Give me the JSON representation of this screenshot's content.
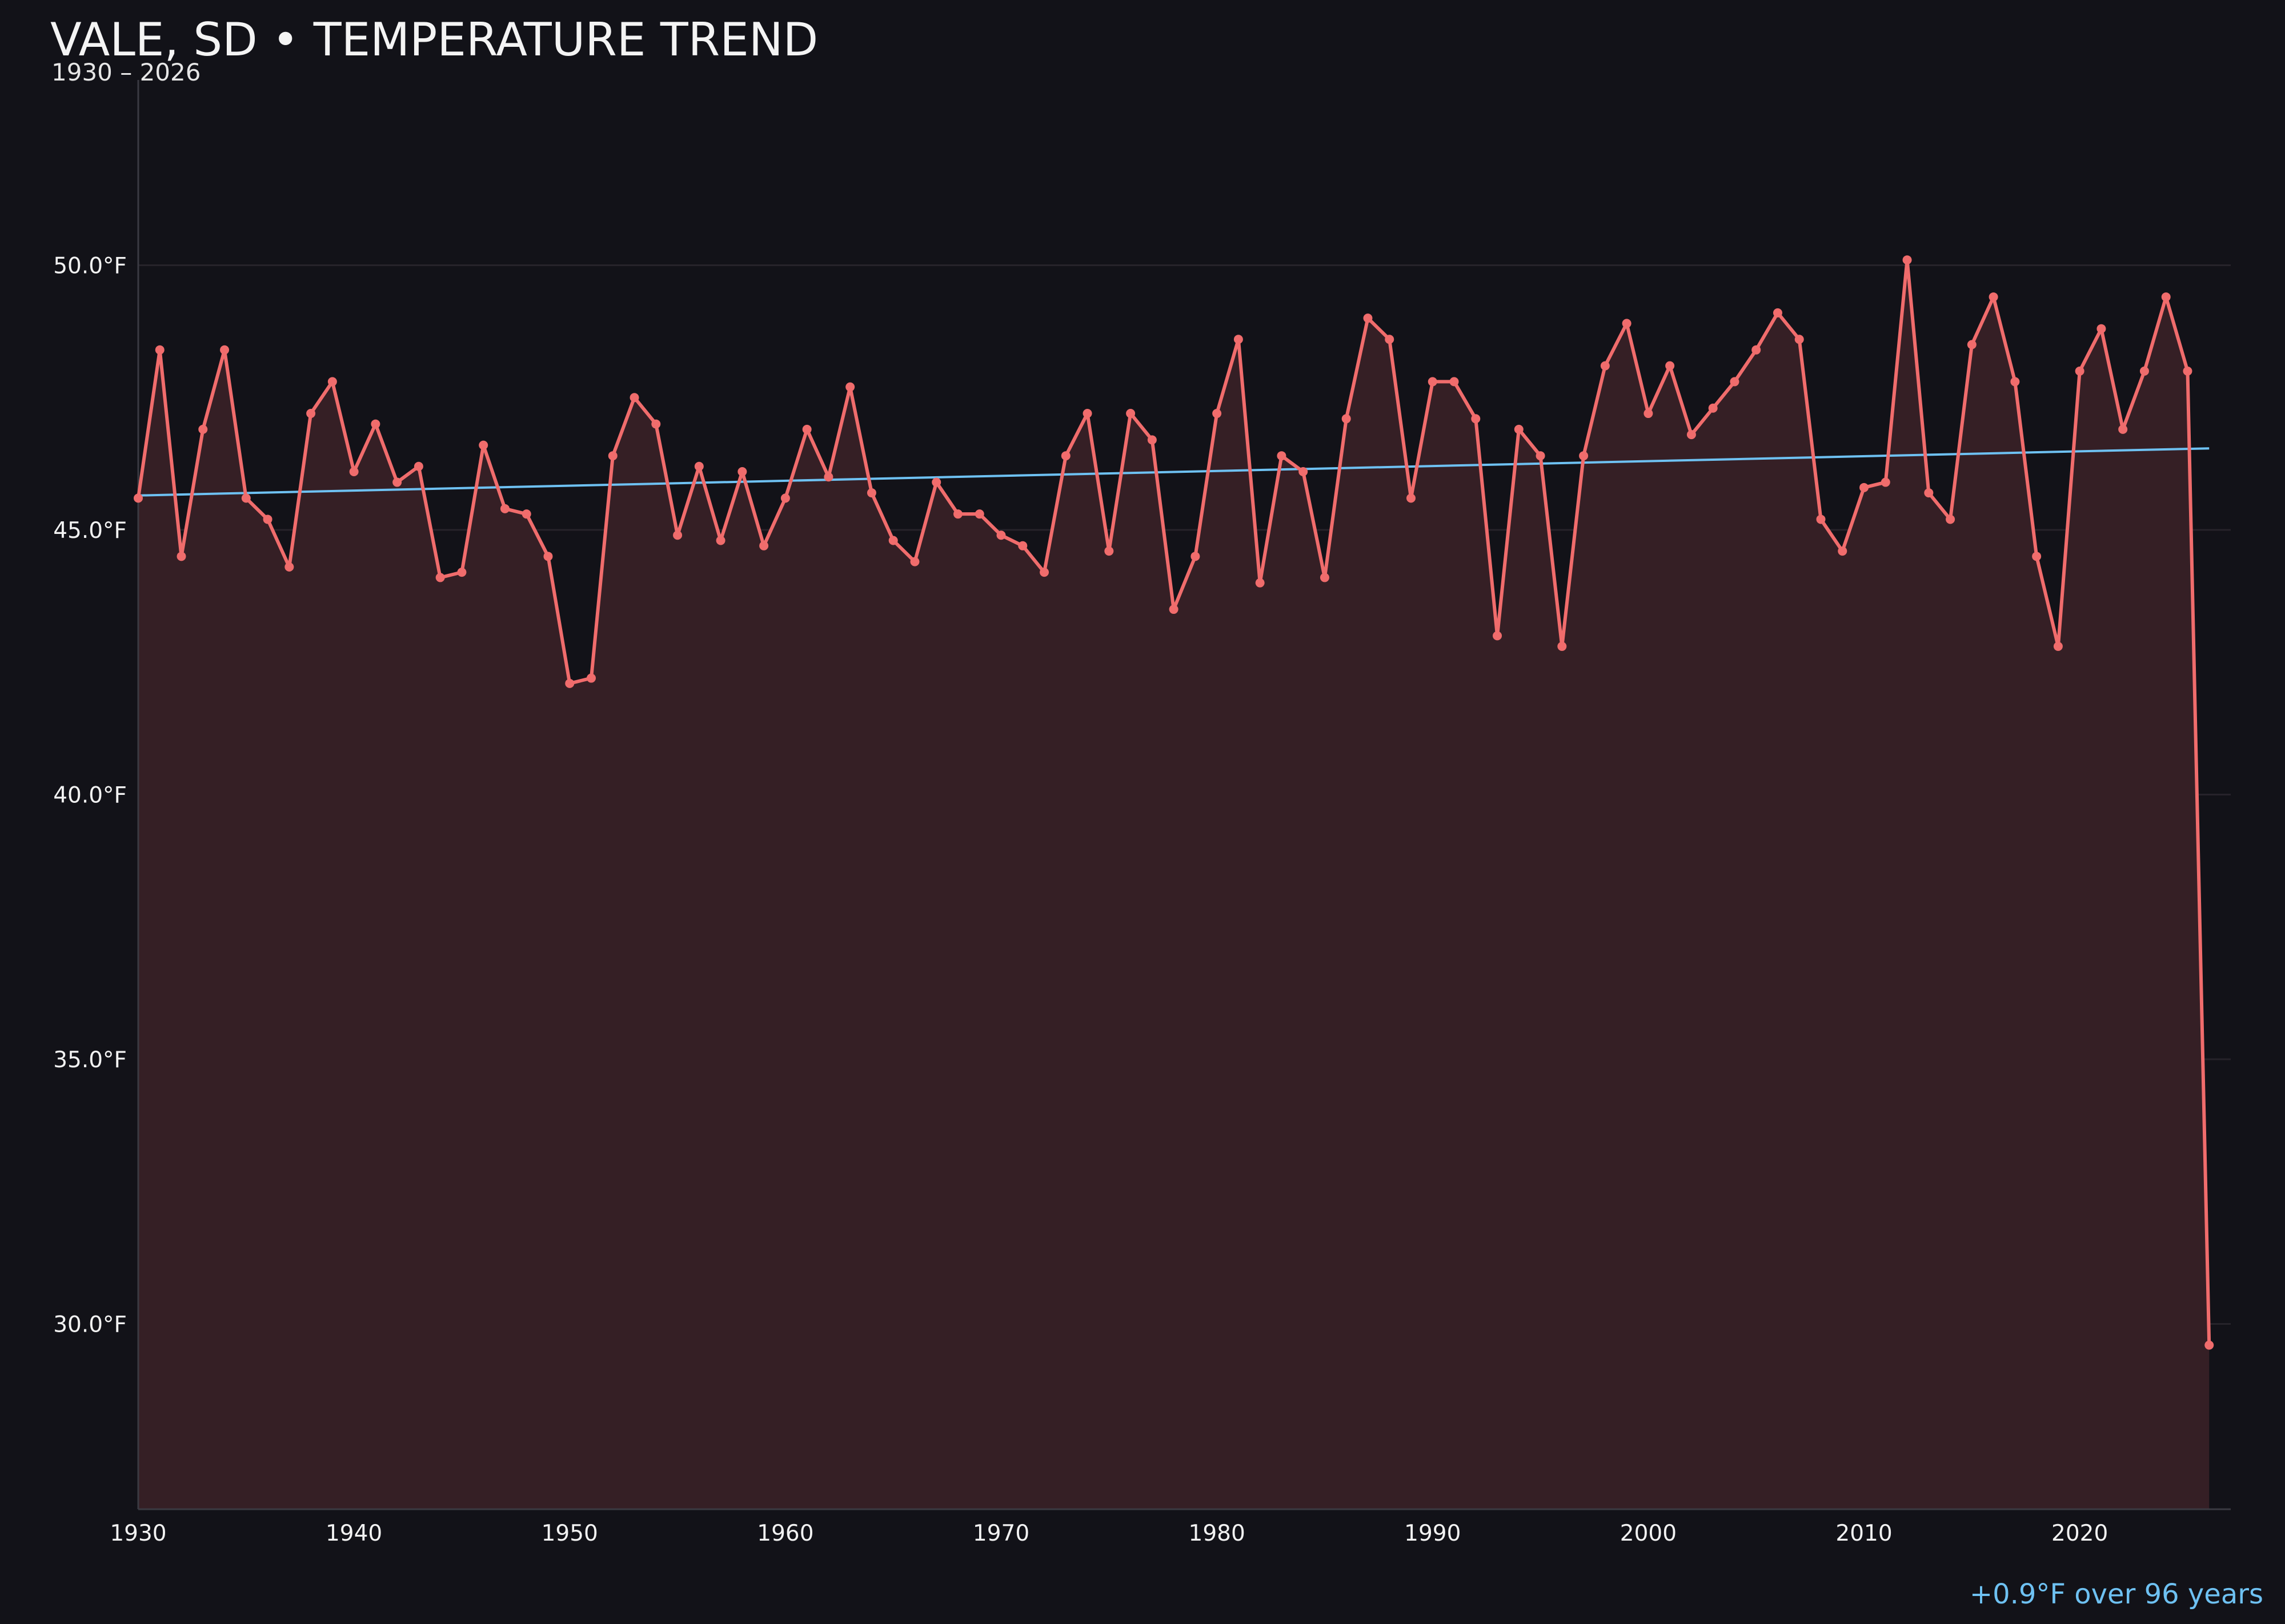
{
  "chart_data": {
    "type": "line",
    "title": "VALE, SD • TEMPERATURE TREND",
    "subtitle": "1930 – 2026",
    "annotation": "+0.9°F over 96 years",
    "xlabel": "",
    "ylabel": "",
    "x": [
      1930,
      1931,
      1932,
      1933,
      1934,
      1935,
      1936,
      1937,
      1938,
      1939,
      1940,
      1941,
      1942,
      1943,
      1944,
      1945,
      1946,
      1947,
      1948,
      1949,
      1950,
      1951,
      1952,
      1953,
      1954,
      1955,
      1956,
      1957,
      1958,
      1959,
      1960,
      1961,
      1962,
      1963,
      1964,
      1965,
      1966,
      1967,
      1968,
      1969,
      1970,
      1971,
      1972,
      1973,
      1974,
      1975,
      1976,
      1977,
      1978,
      1979,
      1980,
      1981,
      1982,
      1983,
      1984,
      1985,
      1986,
      1987,
      1988,
      1989,
      1990,
      1991,
      1992,
      1993,
      1994,
      1995,
      1996,
      1997,
      1998,
      1999,
      2000,
      2001,
      2002,
      2003,
      2004,
      2005,
      2006,
      2007,
      2008,
      2009,
      2010,
      2011,
      2012,
      2013,
      2014,
      2015,
      2016,
      2017,
      2018,
      2019,
      2020,
      2021,
      2022,
      2023,
      2024,
      2025,
      2026
    ],
    "series": [
      {
        "values": [
          45.6,
          48.4,
          44.5,
          46.9,
          48.4,
          45.6,
          45.2,
          44.3,
          47.2,
          47.8,
          46.1,
          47.0,
          45.9,
          46.2,
          44.1,
          44.2,
          46.6,
          45.4,
          45.3,
          44.5,
          42.1,
          42.2,
          46.4,
          47.5,
          47.0,
          44.9,
          46.2,
          44.8,
          46.1,
          44.7,
          45.6,
          46.9,
          46.0,
          47.7,
          45.7,
          44.8,
          44.4,
          45.9,
          45.3,
          45.3,
          44.9,
          44.7,
          44.2,
          46.4,
          47.2,
          44.6,
          47.2,
          46.7,
          43.5,
          44.5,
          47.2,
          48.6,
          44.0,
          46.4,
          46.1,
          44.1,
          47.1,
          49.0,
          48.6,
          45.6,
          47.8,
          47.8,
          47.1,
          43.0,
          46.9,
          46.4,
          42.8,
          46.4,
          48.1,
          48.9,
          47.2,
          48.1,
          46.8,
          47.3,
          47.8,
          48.4,
          49.1,
          48.6,
          45.2,
          44.6,
          45.8,
          45.9,
          50.1,
          45.7,
          45.2,
          48.5,
          49.4,
          47.8,
          44.5,
          42.8,
          48.0,
          48.8,
          46.9,
          48.0,
          49.4,
          48.0,
          29.6
        ],
        "color": "#f06c6c",
        "fill_color": "#351f25"
      },
      {
        "values": [
          45.65,
          46.54
        ],
        "x": [
          1930,
          2026
        ],
        "color": "#6ec1f2",
        "kind": "trend"
      }
    ],
    "x_ticks": [
      1930,
      1940,
      1950,
      1960,
      1970,
      1980,
      1990,
      2000,
      2010,
      2020
    ],
    "x_tick_labels": [
      "1930",
      "1940",
      "1950",
      "1960",
      "1970",
      "1980",
      "1990",
      "2000",
      "2010",
      "2020"
    ],
    "y_ticks": [
      30,
      35,
      40,
      45,
      50
    ],
    "y_tick_labels": [
      "30.0°F",
      "35.0°F",
      "40.0°F",
      "45.0°F",
      "50.0°F"
    ],
    "xlim": [
      1930,
      2027
    ],
    "ylim": [
      26.5,
      53.5
    ],
    "grid": "horizontal",
    "legend": "none",
    "colors": {
      "background": "#121218",
      "grid": "#26232a",
      "axis": "#3a3a42"
    }
  }
}
